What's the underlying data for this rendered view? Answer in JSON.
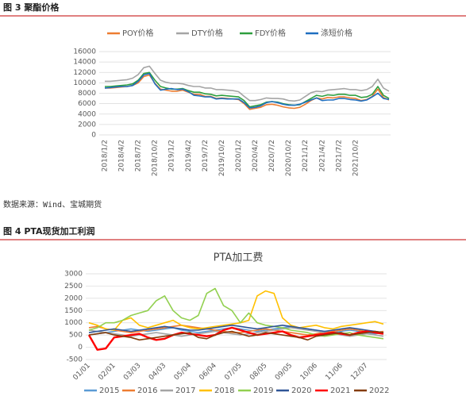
{
  "figures": [
    {
      "label": "图 3 聚酯价格"
    },
    {
      "label": "图 4 PTA现货加工利润"
    }
  ],
  "source": "数据来源：Wind、宝城期货",
  "chart_data": [
    {
      "type": "line",
      "categories": [
        "2018/1/2",
        null,
        null,
        "2018/4/2",
        null,
        null,
        "2018/7/2",
        null,
        null,
        "2018/10/2",
        null,
        null,
        "2019/1/2",
        null,
        null,
        "2019/4/2",
        null,
        null,
        "2019/7/2",
        null,
        null,
        "2019/10/2",
        null,
        null,
        "2020/1/2",
        null,
        null,
        "2020/4/2",
        null,
        null,
        "2020/7/2",
        null,
        null,
        "2020/10/2",
        null,
        null,
        "2021/1/2",
        null,
        null,
        "2021/4/2",
        null,
        null,
        "2021/7/2",
        null,
        null,
        "2021/10/2",
        null,
        null,
        null,
        null,
        null,
        null
      ],
      "series": [
        {
          "name": "POY价格",
          "color": "#ED7D31",
          "values": [
            9000,
            9000,
            9100,
            9200,
            9300,
            9500,
            10000,
            11200,
            11500,
            9900,
            8800,
            8600,
            8400,
            8400,
            8600,
            8200,
            7800,
            7800,
            7400,
            7400,
            7000,
            7100,
            7000,
            6900,
            6800,
            6000,
            4900,
            5100,
            5300,
            5800,
            5900,
            5700,
            5400,
            5200,
            5100,
            5300,
            5900,
            6600,
            7100,
            6900,
            7200,
            7100,
            7300,
            7300,
            7100,
            7000,
            6600,
            6800,
            7400,
            8800,
            7200,
            6700
          ]
        },
        {
          "name": "DTY价格",
          "color": "#A5A5A5",
          "values": [
            10300,
            10300,
            10400,
            10500,
            10600,
            10900,
            11600,
            12900,
            13200,
            11800,
            10500,
            10100,
            9900,
            9900,
            9800,
            9500,
            9300,
            9300,
            9000,
            9000,
            8700,
            8700,
            8600,
            8500,
            8300,
            7400,
            6600,
            6600,
            6800,
            7100,
            7000,
            7000,
            6900,
            6600,
            6500,
            6700,
            7400,
            8100,
            8400,
            8300,
            8600,
            8700,
            8800,
            8900,
            8700,
            8700,
            8500,
            8700,
            9300,
            10700,
            9000,
            8400
          ]
        },
        {
          "name": "FDY价格",
          "color": "#2E9E3E",
          "values": [
            9300,
            9300,
            9400,
            9500,
            9600,
            9800,
            10500,
            11800,
            12000,
            10500,
            9300,
            9000,
            8800,
            8800,
            8900,
            8500,
            8200,
            8200,
            7900,
            7800,
            7500,
            7600,
            7500,
            7400,
            7300,
            6600,
            5400,
            5600,
            5800,
            6300,
            6400,
            6300,
            6000,
            5800,
            5700,
            5800,
            6400,
            7000,
            7600,
            7400,
            7700,
            7600,
            7800,
            7800,
            7600,
            7600,
            7200,
            7300,
            7800,
            9300,
            7600,
            7000
          ]
        },
        {
          "name": "涤短价格",
          "color": "#1F6FC0",
          "values": [
            9000,
            9100,
            9200,
            9300,
            9300,
            9500,
            10300,
            11500,
            11800,
            9800,
            8600,
            8800,
            8900,
            8700,
            8800,
            8300,
            7600,
            7500,
            7300,
            7300,
            6900,
            7000,
            6900,
            6900,
            6900,
            6200,
            5200,
            5300,
            5600,
            6200,
            6400,
            6200,
            5900,
            5700,
            5700,
            5900,
            6300,
            6700,
            7100,
            6600,
            6700,
            6700,
            7000,
            7000,
            6800,
            6700,
            6500,
            6700,
            7300,
            8000,
            7000,
            6800
          ]
        }
      ],
      "ylim": [
        0,
        16000
      ],
      "yticks": [
        0,
        2000,
        4000,
        6000,
        8000,
        10000,
        12000,
        14000,
        16000
      ],
      "grid": true
    },
    {
      "type": "line",
      "title": "PTA加工费",
      "categories": [
        "01/01",
        null,
        null,
        "02/01",
        null,
        null,
        "03/03",
        null,
        null,
        "04/03",
        null,
        null,
        "05/04",
        null,
        null,
        "06/04",
        null,
        null,
        "07/05",
        null,
        null,
        "08/05",
        null,
        null,
        "09/05",
        null,
        null,
        "10/06",
        null,
        null,
        "11/06",
        null,
        null,
        "12/07",
        null,
        null
      ],
      "series": [
        {
          "name": "2015",
          "color": "#5B9BD5",
          "values": [
            500,
            550,
            600,
            650,
            700,
            750,
            700,
            650,
            700,
            750,
            800,
            700,
            650,
            600,
            650,
            700,
            750,
            800,
            750,
            700,
            650,
            700,
            750,
            800,
            850,
            800,
            750,
            700,
            650,
            600,
            650,
            700,
            650,
            600,
            550,
            600
          ]
        },
        {
          "name": "2016",
          "color": "#ED7D31",
          "values": [
            800,
            850,
            750,
            700,
            650,
            600,
            650,
            700,
            750,
            800,
            850,
            900,
            850,
            800,
            750,
            700,
            650,
            600,
            600,
            650,
            700,
            750,
            700,
            650,
            600,
            550,
            500,
            550,
            600,
            650,
            700,
            750,
            700,
            650,
            600,
            650
          ]
        },
        {
          "name": "2017",
          "color": "#A5A5A5",
          "values": [
            700,
            650,
            600,
            550,
            500,
            450,
            500,
            550,
            600,
            550,
            500,
            450,
            500,
            550,
            600,
            650,
            600,
            550,
            500,
            550,
            600,
            650,
            700,
            750,
            800,
            750,
            700,
            650,
            600,
            550,
            500,
            450,
            500,
            550,
            500,
            450
          ]
        },
        {
          "name": "2018",
          "color": "#FFC000",
          "values": [
            1000,
            900,
            750,
            700,
            1100,
            1200,
            900,
            800,
            900,
            1000,
            1100,
            900,
            800,
            750,
            800,
            850,
            900,
            950,
            1000,
            1100,
            2100,
            2300,
            2200,
            1200,
            900,
            800,
            850,
            900,
            800,
            750,
            850,
            900,
            950,
            1000,
            1050,
            950
          ]
        },
        {
          "name": "2019",
          "color": "#92D050",
          "values": [
            700,
            800,
            1000,
            1000,
            1100,
            1300,
            1400,
            1500,
            1900,
            2100,
            1500,
            1200,
            1100,
            1300,
            2200,
            2400,
            1700,
            1500,
            1000,
            1400,
            1000,
            900,
            850,
            800,
            700,
            650,
            600,
            500,
            450,
            500,
            550,
            600,
            500,
            450,
            400,
            350
          ]
        },
        {
          "name": "2020",
          "color": "#2F5597",
          "values": [
            600,
            650,
            700,
            750,
            700,
            650,
            700,
            750,
            800,
            850,
            800,
            750,
            700,
            700,
            750,
            800,
            850,
            900,
            850,
            800,
            750,
            800,
            850,
            900,
            850,
            800,
            750,
            700,
            650,
            700,
            750,
            800,
            750,
            700,
            650,
            600
          ]
        },
        {
          "name": "2021",
          "color": "#FF0000",
          "values": [
            500,
            -100,
            -50,
            400,
            450,
            500,
            550,
            400,
            300,
            350,
            500,
            600,
            550,
            500,
            450,
            500,
            700,
            800,
            700,
            600,
            500,
            550,
            600,
            650,
            500,
            400,
            450,
            500,
            550,
            600,
            550,
            500,
            600,
            650,
            600,
            550
          ]
        },
        {
          "name": "2022",
          "color": "#843C0C",
          "values": [
            500,
            550,
            600,
            500,
            450,
            400,
            300,
            350,
            400,
            450,
            500,
            550,
            600,
            400,
            350,
            500,
            600,
            650,
            550,
            450,
            500,
            600,
            550,
            500,
            450,
            400,
            300,
            450,
            500,
            550,
            600,
            500,
            550,
            600,
            650,
            600
          ]
        }
      ],
      "ylim": [
        -500,
        3000
      ],
      "yticks": [
        -500,
        0,
        500,
        1000,
        1500,
        2000,
        2500,
        3000
      ],
      "grid": true
    }
  ]
}
